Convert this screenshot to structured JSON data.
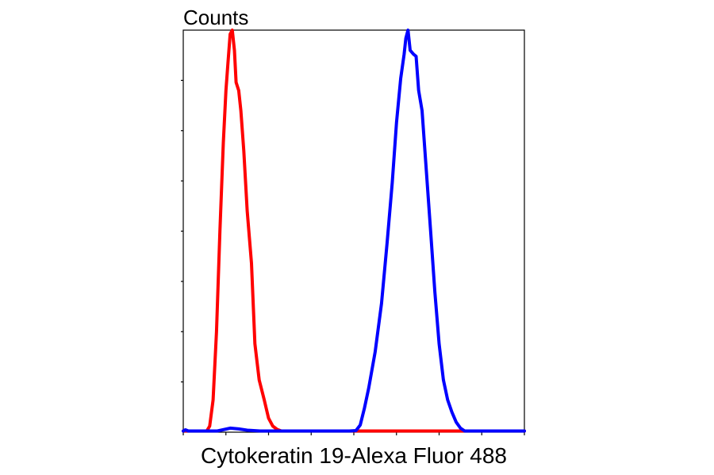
{
  "chart_data": {
    "type": "line",
    "title": "",
    "xlabel": "Cytokeratin 19-Alexa Fluor 488",
    "ylabel": "Counts",
    "xlim": [
      0,
      8
    ],
    "ylim": [
      0,
      100
    ],
    "x_ticks": [
      0,
      1,
      2,
      3,
      4,
      5,
      6,
      7,
      8
    ],
    "y_ticks": [
      12.5,
      25,
      37.5,
      50,
      62.5,
      75,
      87.5
    ],
    "grid": false,
    "legend": "none",
    "series": [
      {
        "color": "#ff0000",
        "points": [
          [
            0.0,
            0.0
          ],
          [
            0.4,
            0.0
          ],
          [
            0.55,
            0.2
          ],
          [
            0.62,
            1.5
          ],
          [
            0.7,
            8
          ],
          [
            0.78,
            25
          ],
          [
            0.86,
            50
          ],
          [
            0.94,
            72
          ],
          [
            1.0,
            85
          ],
          [
            1.05,
            92
          ],
          [
            1.1,
            99
          ],
          [
            1.15,
            100
          ],
          [
            1.2,
            95
          ],
          [
            1.24,
            87
          ],
          [
            1.3,
            85
          ],
          [
            1.35,
            80
          ],
          [
            1.42,
            70
          ],
          [
            1.5,
            55
          ],
          [
            1.6,
            42
          ],
          [
            1.68,
            22
          ],
          [
            1.78,
            13
          ],
          [
            1.9,
            8
          ],
          [
            2.0,
            3.5
          ],
          [
            2.1,
            1.5
          ],
          [
            2.2,
            0.7
          ],
          [
            2.3,
            0.2
          ],
          [
            2.45,
            0.0
          ],
          [
            5.5,
            0.0
          ],
          [
            8.0,
            0.0
          ]
        ]
      },
      {
        "color": "#0000ff",
        "points": [
          [
            0.0,
            0.3
          ],
          [
            0.05,
            0.6
          ],
          [
            0.12,
            0.2
          ],
          [
            0.3,
            0.1
          ],
          [
            0.8,
            0.3
          ],
          [
            1.1,
            1.0
          ],
          [
            1.3,
            0.8
          ],
          [
            1.5,
            0.5
          ],
          [
            1.8,
            0.1
          ],
          [
            3.5,
            0.0
          ],
          [
            3.9,
            0.0
          ],
          [
            4.05,
            0.4
          ],
          [
            4.15,
            1.8
          ],
          [
            4.25,
            6
          ],
          [
            4.35,
            11
          ],
          [
            4.5,
            20
          ],
          [
            4.65,
            32
          ],
          [
            4.78,
            47
          ],
          [
            4.9,
            62
          ],
          [
            5.0,
            77
          ],
          [
            5.1,
            88
          ],
          [
            5.18,
            94
          ],
          [
            5.22,
            98
          ],
          [
            5.27,
            100
          ],
          [
            5.32,
            95
          ],
          [
            5.4,
            94
          ],
          [
            5.46,
            93.5
          ],
          [
            5.52,
            85
          ],
          [
            5.6,
            80
          ],
          [
            5.7,
            65
          ],
          [
            5.8,
            50
          ],
          [
            5.9,
            35
          ],
          [
            6.0,
            22
          ],
          [
            6.1,
            13
          ],
          [
            6.2,
            8
          ],
          [
            6.3,
            5
          ],
          [
            6.4,
            2.5
          ],
          [
            6.5,
            1.0
          ],
          [
            6.6,
            0.2
          ],
          [
            6.75,
            0.0
          ],
          [
            8.0,
            0.0
          ]
        ]
      }
    ]
  }
}
